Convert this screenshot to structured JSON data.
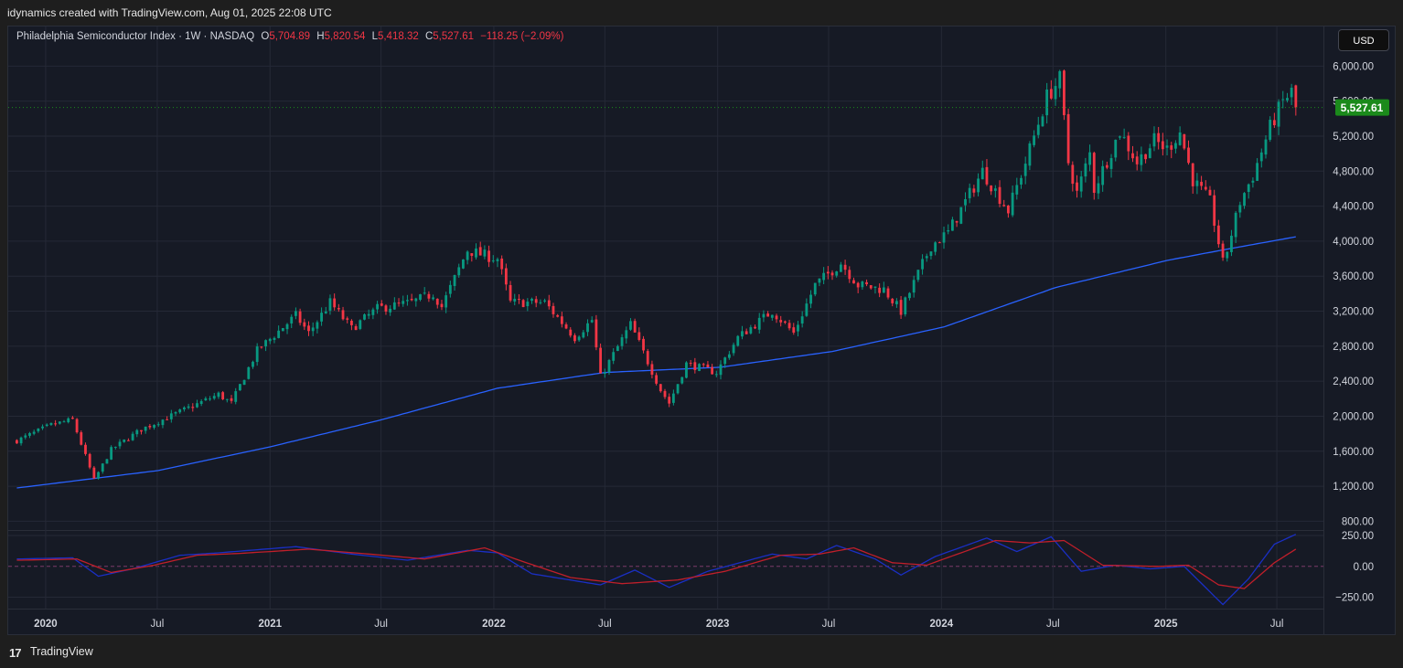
{
  "header": {
    "attribution": "idynamics created with TradingView.com, Aug 01, 2025 22:08 UTC"
  },
  "legend": {
    "symbol": "Philadelphia Semiconductor Index · 1W · NASDAQ",
    "o_label": "O",
    "o_value": "5,704.89",
    "h_label": "H",
    "h_value": "5,820.54",
    "l_label": "L",
    "l_value": "5,418.32",
    "c_label": "C",
    "c_value": "5,527.61",
    "change": "−118.25 (−2.09%)"
  },
  "currency_button": "USD",
  "footer": {
    "logo_glyph": "17",
    "brand": "TradingView"
  },
  "colors": {
    "background": "#161a25",
    "grid": "#252936",
    "up": "#089981",
    "down": "#f23645",
    "ma_line": "#2962ff",
    "osc_fast": "#1a2fc4",
    "osc_slow": "#c01f2a",
    "last_price_badge": "#1b8a1b"
  },
  "chart_data": {
    "type": "candlestick",
    "timeframe": "1W",
    "series_name": "Philadelphia Semiconductor Index",
    "y_axis": {
      "ticks": [
        "6,000.00",
        "5,600.00",
        "5,200.00",
        "4,800.00",
        "4,400.00",
        "4,000.00",
        "3,600.00",
        "3,200.00",
        "2,800.00",
        "2,400.00",
        "2,000.00",
        "1,600.00",
        "1,200.00",
        "800.00"
      ],
      "ylim": [
        700,
        6150
      ]
    },
    "x_axis": {
      "labels": [
        "2020",
        "Jul",
        "2021",
        "Jul",
        "2022",
        "Jul",
        "2023",
        "Jul",
        "2024",
        "Jul",
        "2025",
        "Jul"
      ],
      "range": [
        "2019-11",
        "2025-09"
      ]
    },
    "last_price": "5,527.61",
    "last_price_value": 5527.61,
    "price_anchors": [
      [
        "2019-11-15",
        1720
      ],
      [
        "2020-01-10",
        1900
      ],
      [
        "2020-02-14",
        1960
      ],
      [
        "2020-03-20",
        1270
      ],
      [
        "2020-04-17",
        1620
      ],
      [
        "2020-06-05",
        1850
      ],
      [
        "2020-08-07",
        2050
      ],
      [
        "2020-10-09",
        2250
      ],
      [
        "2020-10-30",
        2150
      ],
      [
        "2020-12-11",
        2750
      ],
      [
        "2021-02-12",
        3150
      ],
      [
        "2021-03-05",
        2950
      ],
      [
        "2021-04-09",
        3300
      ],
      [
        "2021-05-14",
        3000
      ],
      [
        "2021-06-25",
        3230
      ],
      [
        "2021-08-20",
        3300
      ],
      [
        "2021-09-24",
        3400
      ],
      [
        "2021-10-08",
        3250
      ],
      [
        "2021-11-19",
        3900
      ],
      [
        "2021-12-10",
        3850
      ],
      [
        "2022-01-07",
        3800
      ],
      [
        "2022-01-28",
        3300
      ],
      [
        "2022-03-25",
        3300
      ],
      [
        "2022-05-13",
        2900
      ],
      [
        "2022-06-10",
        3100
      ],
      [
        "2022-06-24",
        2450
      ],
      [
        "2022-08-12",
        3050
      ],
      [
        "2022-09-30",
        2300
      ],
      [
        "2022-10-14",
        2150
      ],
      [
        "2022-11-11",
        2600
      ],
      [
        "2022-12-30",
        2500
      ],
      [
        "2023-02-03",
        2900
      ],
      [
        "2023-03-31",
        3200
      ],
      [
        "2023-05-05",
        2950
      ],
      [
        "2023-06-09",
        3500
      ],
      [
        "2023-07-21",
        3750
      ],
      [
        "2023-08-18",
        3500
      ],
      [
        "2023-09-29",
        3450
      ],
      [
        "2023-10-27",
        3200
      ],
      [
        "2023-12-15",
        3950
      ],
      [
        "2024-01-12",
        4100
      ],
      [
        "2024-03-08",
        4800
      ],
      [
        "2024-04-19",
        4350
      ],
      [
        "2024-05-17",
        4900
      ],
      [
        "2024-06-21",
        5650
      ],
      [
        "2024-07-12",
        5850
      ],
      [
        "2024-07-26",
        4900
      ],
      [
        "2024-08-09",
        4550
      ],
      [
        "2024-08-30",
        5000
      ],
      [
        "2024-09-06",
        4600
      ],
      [
        "2024-10-18",
        5250
      ],
      [
        "2024-11-15",
        4900
      ],
      [
        "2024-12-13",
        5150
      ],
      [
        "2025-01-03",
        5050
      ],
      [
        "2025-01-24",
        5250
      ],
      [
        "2025-02-14",
        4700
      ],
      [
        "2025-03-14",
        4450
      ],
      [
        "2025-04-04",
        3750
      ],
      [
        "2025-04-11",
        3900
      ],
      [
        "2025-05-02",
        4450
      ],
      [
        "2025-05-23",
        4750
      ],
      [
        "2025-06-20",
        5300
      ],
      [
        "2025-07-11",
        5600
      ],
      [
        "2025-07-25",
        5705
      ],
      [
        "2025-08-01",
        5527.61
      ]
    ],
    "ma_series": {
      "name": "moving average",
      "points": [
        [
          "2019-11-15",
          1180
        ],
        [
          "2020-07-03",
          1380
        ],
        [
          "2021-01-01",
          1650
        ],
        [
          "2021-07-02",
          1960
        ],
        [
          "2022-01-07",
          2320
        ],
        [
          "2022-07-01",
          2500
        ],
        [
          "2023-01-06",
          2560
        ],
        [
          "2023-07-07",
          2740
        ],
        [
          "2024-01-05",
          3020
        ],
        [
          "2024-07-05",
          3470
        ],
        [
          "2025-01-03",
          3780
        ],
        [
          "2025-04-04",
          3900
        ],
        [
          "2025-08-01",
          4050
        ]
      ]
    },
    "oscillator": {
      "ticks": [
        "250.00",
        "0.00",
        "−250.00"
      ],
      "ylim": [
        -320,
        280
      ],
      "fast_points": [
        [
          "2019-11-15",
          60
        ],
        [
          "2020-02-14",
          70
        ],
        [
          "2020-03-27",
          -80
        ],
        [
          "2020-05-22",
          -20
        ],
        [
          "2020-08-07",
          90
        ],
        [
          "2020-10-09",
          110
        ],
        [
          "2021-02-12",
          160
        ],
        [
          "2021-05-14",
          100
        ],
        [
          "2021-08-13",
          50
        ],
        [
          "2021-11-19",
          130
        ],
        [
          "2022-01-07",
          110
        ],
        [
          "2022-03-04",
          -60
        ],
        [
          "2022-06-24",
          -150
        ],
        [
          "2022-08-19",
          -30
        ],
        [
          "2022-10-14",
          -170
        ],
        [
          "2022-12-16",
          -40
        ],
        [
          "2023-03-31",
          100
        ],
        [
          "2023-05-26",
          60
        ],
        [
          "2023-07-14",
          170
        ],
        [
          "2023-09-15",
          60
        ],
        [
          "2023-10-27",
          -70
        ],
        [
          "2023-12-22",
          80
        ],
        [
          "2024-03-15",
          230
        ],
        [
          "2024-05-03",
          120
        ],
        [
          "2024-06-28",
          240
        ],
        [
          "2024-08-16",
          -40
        ],
        [
          "2024-10-11",
          10
        ],
        [
          "2024-12-06",
          -20
        ],
        [
          "2025-01-31",
          0
        ],
        [
          "2025-04-04",
          -310
        ],
        [
          "2025-05-16",
          -100
        ],
        [
          "2025-06-27",
          180
        ],
        [
          "2025-08-01",
          260
        ]
      ],
      "slow_points": [
        [
          "2019-11-15",
          50
        ],
        [
          "2020-02-21",
          60
        ],
        [
          "2020-04-17",
          -50
        ],
        [
          "2020-06-26",
          10
        ],
        [
          "2020-09-04",
          90
        ],
        [
          "2020-11-13",
          105
        ],
        [
          "2021-03-05",
          140
        ],
        [
          "2021-06-11",
          100
        ],
        [
          "2021-09-10",
          60
        ],
        [
          "2021-12-17",
          150
        ],
        [
          "2022-02-11",
          50
        ],
        [
          "2022-05-06",
          -90
        ],
        [
          "2022-07-29",
          -140
        ],
        [
          "2022-10-28",
          -110
        ],
        [
          "2023-01-13",
          -40
        ],
        [
          "2023-04-14",
          90
        ],
        [
          "2023-06-16",
          100
        ],
        [
          "2023-08-11",
          150
        ],
        [
          "2023-10-13",
          30
        ],
        [
          "2023-12-08",
          10
        ],
        [
          "2024-03-29",
          210
        ],
        [
          "2024-05-24",
          190
        ],
        [
          "2024-07-19",
          210
        ],
        [
          "2024-09-20",
          10
        ],
        [
          "2024-12-20",
          0
        ],
        [
          "2025-02-07",
          10
        ],
        [
          "2025-03-28",
          -150
        ],
        [
          "2025-05-09",
          -180
        ],
        [
          "2025-06-27",
          30
        ],
        [
          "2025-08-01",
          140
        ]
      ]
    }
  }
}
